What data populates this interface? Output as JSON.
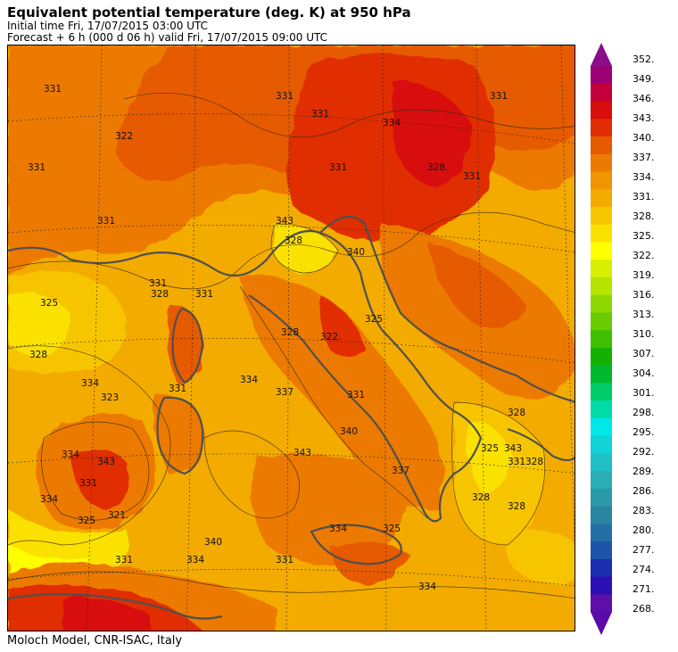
{
  "header": {
    "title": "Equivalent potential temperature (deg. K) at 950 hPa",
    "initial_time": "Initial time  Fri, 17/07/2015  03:00 UTC",
    "forecast": "Forecast  +   6 h  (000 d 06 h)  valid Fri, 17/07/2015 09:00 UTC"
  },
  "footer": {
    "credit": "Moloch Model, CNR-ISAC, Italy"
  },
  "colorbar": {
    "labels": [
      "352.",
      "349.",
      "346.",
      "343.",
      "340.",
      "337.",
      "334.",
      "331.",
      "328.",
      "325.",
      "322.",
      "319.",
      "316.",
      "313.",
      "310.",
      "307.",
      "304.",
      "301.",
      "298.",
      "295.",
      "292.",
      "289.",
      "286.",
      "283.",
      "280.",
      "277.",
      "274.",
      "271.",
      "268."
    ],
    "colors": [
      "#9b0074",
      "#c4003a",
      "#d80d0d",
      "#e02d05",
      "#e65a00",
      "#ec7a00",
      "#f09400",
      "#f3ab00",
      "#f7c500",
      "#fbe100",
      "#ffff00",
      "#d8ef00",
      "#b4e400",
      "#8ed800",
      "#69cc00",
      "#3ec000",
      "#14b200",
      "#00b830",
      "#00cc6a",
      "#00dca8",
      "#00e8e8",
      "#10d4d8",
      "#20c0c8",
      "#2aaeb6",
      "#2a9aa8",
      "#2a86a0",
      "#2470a4",
      "#1e55a8",
      "#1a2cb0",
      "#2a10b4",
      "#5d0fa8"
    ],
    "top_arrow_color": "#8a0d8a",
    "bottom_arrow_color": "#5a0aa8"
  },
  "map": {
    "contour_labels": [
      "331",
      "322",
      "331",
      "331",
      "325",
      "331",
      "328",
      "331",
      "328",
      "334",
      "323",
      "331",
      "334",
      "343",
      "331",
      "334",
      "321.",
      "325",
      "331",
      "331",
      "334",
      "328.",
      "331",
      "331",
      "331",
      "343",
      "328",
      "340",
      "322.",
      "328",
      "325",
      "331",
      "334",
      "337",
      "343",
      "340",
      "337",
      "328",
      "331",
      "325",
      "343",
      "328",
      "334",
      "325",
      "334",
      "331",
      "340",
      "331",
      "334",
      "328",
      "328"
    ],
    "colors": {
      "sea_warm": "#f3ab00",
      "land_orange": "#ec7a00",
      "land_hot": "#e02d05",
      "cool_yellow": "#fbe100",
      "coast": "#505050"
    }
  }
}
